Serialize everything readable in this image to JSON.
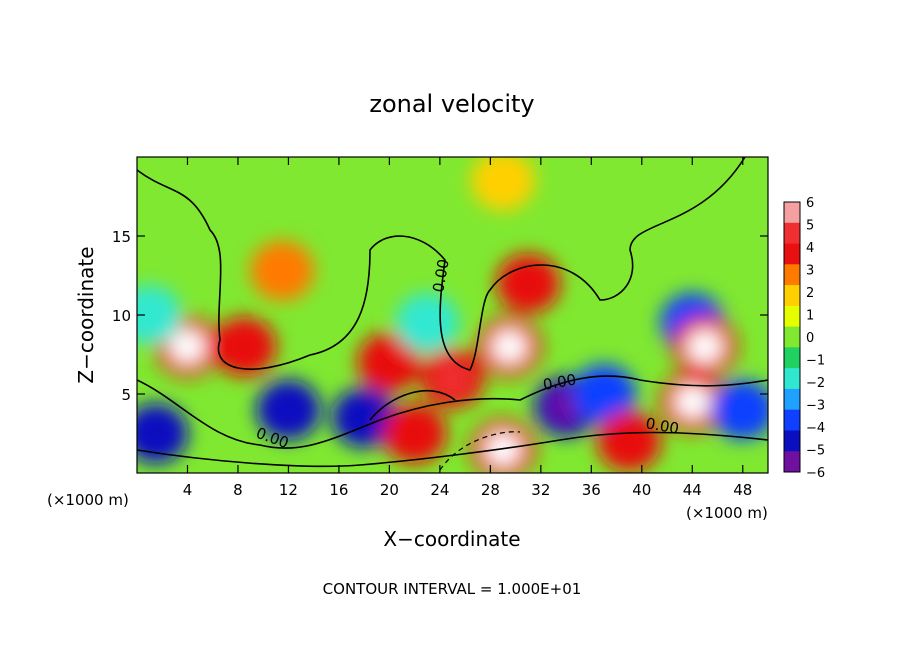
{
  "chart_data": {
    "type": "heatmap",
    "title": "zonal velocity",
    "xlabel": "X−coordinate",
    "ylabel": "Z−coordinate",
    "x_unit_left": "(×1000 m)",
    "x_unit_right": "(×1000 m)",
    "footer": "CONTOUR INTERVAL = 1.000E+01",
    "xlim": [
      0,
      50
    ],
    "ylim": [
      0,
      20
    ],
    "x_ticks": [
      "4",
      "8",
      "12",
      "16",
      "20",
      "24",
      "28",
      "32",
      "36",
      "40",
      "44",
      "48"
    ],
    "y_ticks": [
      "5",
      "10",
      "15"
    ],
    "colorbar": {
      "range": [
        -6,
        6
      ],
      "labels": [
        "6",
        "5",
        "4",
        "3",
        "2",
        "1",
        "0",
        "−1",
        "−2",
        "−3",
        "−4",
        "−5",
        "−6"
      ],
      "colors": [
        "#f4a0a0",
        "#f03030",
        "#e81010",
        "#ff7a00",
        "#ffd000",
        "#e6ff00",
        "#80e830",
        "#20d060",
        "#30e8d0",
        "#20a0ff",
        "#1040ff",
        "#0a10c0",
        "#7010a0"
      ]
    },
    "contour_labels": [
      "0.00",
      "0.00",
      "0.00",
      "0.00"
    ],
    "regions": [
      {
        "x": 4,
        "z": 8,
        "value": 7
      },
      {
        "x": 8.5,
        "z": 8,
        "value": 4
      },
      {
        "x": 1.5,
        "z": 2.5,
        "value": -5
      },
      {
        "x": 12,
        "z": 4,
        "value": -5
      },
      {
        "x": 18,
        "z": 3.5,
        "value": -5
      },
      {
        "x": 22,
        "z": 2.5,
        "value": 4
      },
      {
        "x": 29.5,
        "z": 8,
        "value": 7
      },
      {
        "x": 25,
        "z": 6,
        "value": 5
      },
      {
        "x": 29,
        "z": 1.5,
        "value": 7
      },
      {
        "x": 34,
        "z": 4.2,
        "value": -6
      },
      {
        "x": 37,
        "z": 5,
        "value": -4
      },
      {
        "x": 44,
        "z": 4.5,
        "value": 7
      },
      {
        "x": 44,
        "z": 9.5,
        "value": -4
      },
      {
        "x": 45,
        "z": 8,
        "value": 7
      },
      {
        "x": 39,
        "z": 2,
        "value": 4
      },
      {
        "x": 20,
        "z": 7,
        "value": 4
      },
      {
        "x": 11.5,
        "z": 12.8,
        "value": 3
      },
      {
        "x": 23,
        "z": 9.5,
        "value": -2
      },
      {
        "x": 31,
        "z": 12,
        "value": 4
      },
      {
        "x": 29,
        "z": 18.5,
        "value": 2
      },
      {
        "x": 1,
        "z": 10,
        "value": -2
      },
      {
        "x": 48,
        "z": 4,
        "value": -4
      }
    ]
  }
}
